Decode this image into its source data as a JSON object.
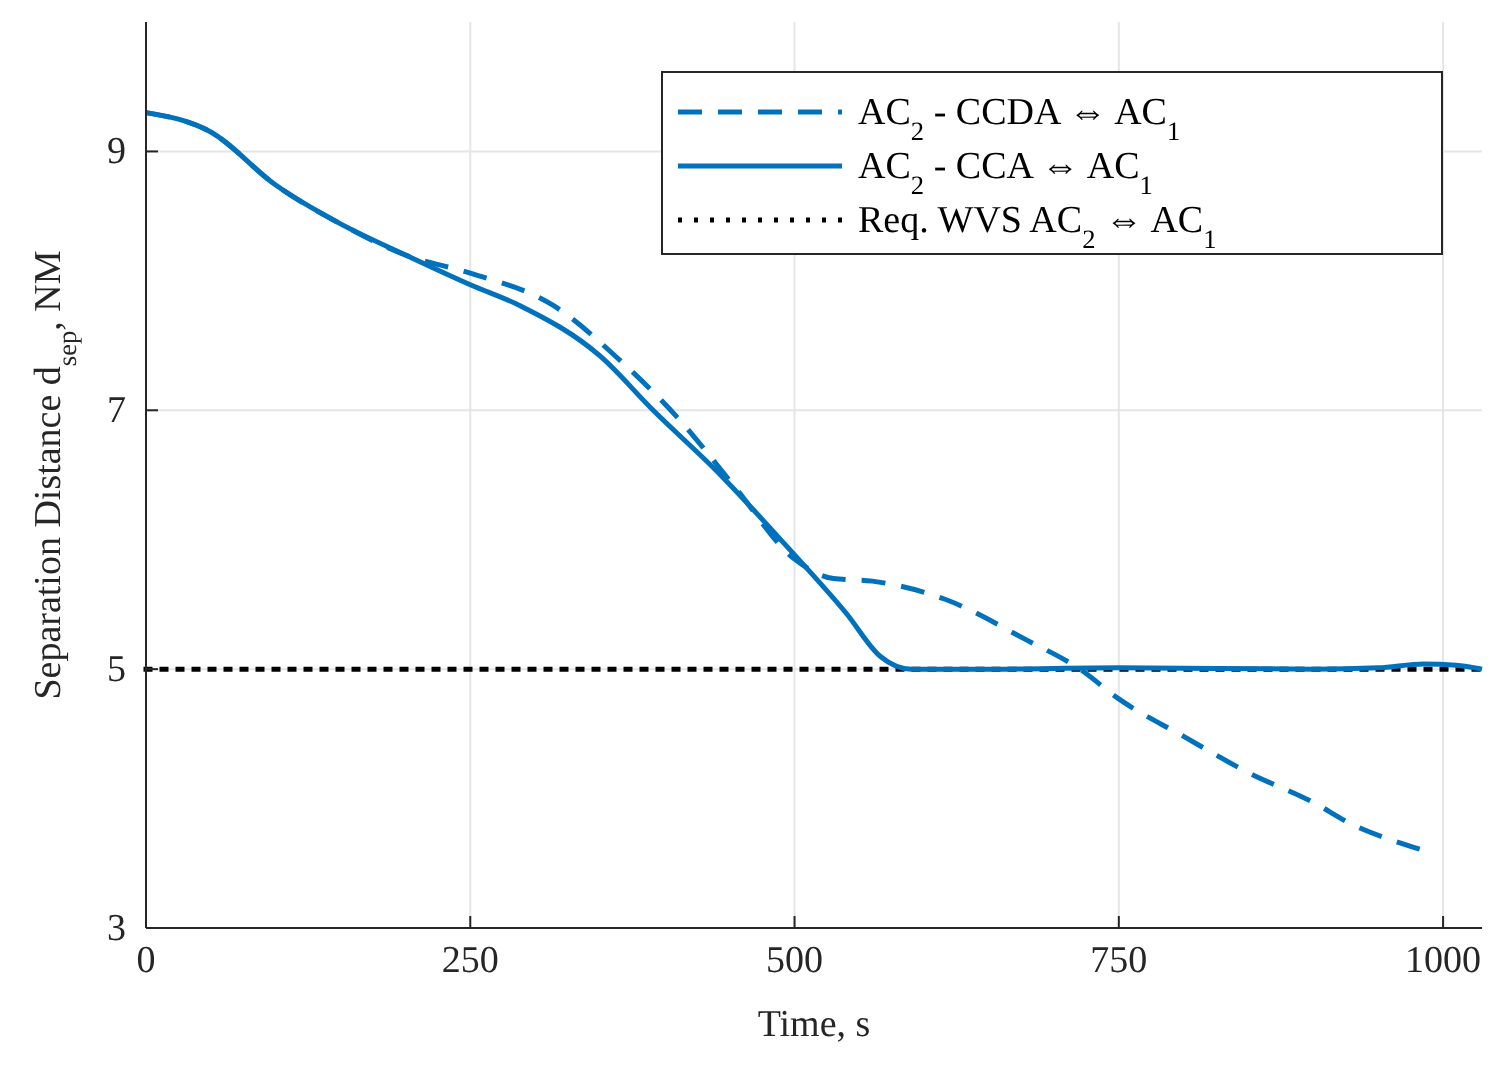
{
  "chart_data": {
    "type": "line",
    "xlabel": "Time, s",
    "ylabel": "Separation Distance d$_{sep}$, NM",
    "xlim": [
      0,
      1030
    ],
    "ylim": [
      3,
      10
    ],
    "xticks": [
      0,
      250,
      500,
      750,
      1000
    ],
    "yticks": [
      3,
      5,
      7,
      9
    ],
    "grid": true,
    "legend": "top right",
    "series": [
      {
        "name": "AC$_{2}$ - CCDA ⇔ AC$_{1}$",
        "color": "#0072bd",
        "line_style": "dashed",
        "x": [
          0,
          50,
          100,
          150,
          200,
          250,
          314,
          365,
          411,
          453,
          500,
          530,
          560,
          616,
          678,
          720,
          750,
          800,
          850,
          900,
          930,
          960,
          985
        ],
        "values": [
          9.3,
          9.15,
          8.74,
          8.44,
          8.2,
          8.06,
          7.81,
          7.39,
          6.93,
          6.42,
          5.85,
          5.7,
          5.68,
          5.54,
          5.23,
          5.0,
          4.77,
          4.48,
          4.2,
          3.97,
          3.8,
          3.68,
          3.6
        ]
      },
      {
        "name": "AC$_{2}$ - CCA ⇔ AC$_{1}$",
        "color": "#0072bd",
        "line_style": "solid",
        "x": [
          0,
          50,
          100,
          150,
          200,
          250,
          288,
          350,
          391,
          442,
          493,
          540,
          566,
          590,
          650,
          750,
          900,
          950,
          985,
          1010,
          1030
        ],
        "values": [
          9.3,
          9.15,
          8.74,
          8.44,
          8.2,
          7.97,
          7.81,
          7.42,
          7.0,
          6.51,
          5.96,
          5.43,
          5.1,
          5.0,
          5.0,
          5.01,
          5.0,
          5.01,
          5.04,
          5.03,
          5.0
        ]
      }
    ],
    "ref_lines": [
      {
        "axis": "y",
        "value": 5,
        "label": "Req. WVS AC$_{2}$ ⇔ AC$_{1}$",
        "color": "#000000",
        "line_style": "dotted"
      }
    ]
  }
}
